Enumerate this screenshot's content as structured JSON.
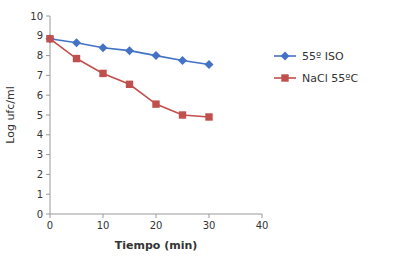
{
  "chart_data": {
    "type": "line",
    "x": [
      0,
      5,
      10,
      15,
      20,
      25,
      30
    ],
    "series": [
      {
        "name": "55º ISO",
        "color": "#4472C4",
        "marker": "diamond",
        "values": [
          8.85,
          8.65,
          8.4,
          8.25,
          8.0,
          7.75,
          7.55
        ]
      },
      {
        "name": "NaCl 55ºC",
        "color": "#C0504D",
        "marker": "square",
        "values": [
          8.85,
          7.85,
          7.1,
          6.55,
          5.55,
          5.0,
          4.9
        ]
      }
    ],
    "xlabel": "Tiempo (min)",
    "ylabel": "Log ufc/ml",
    "xlim": [
      0,
      40
    ],
    "ylim": [
      0,
      10
    ],
    "xticks": [
      0,
      10,
      20,
      30,
      40
    ],
    "yticks": [
      0,
      1,
      2,
      3,
      4,
      5,
      6,
      7,
      8,
      9,
      10
    ],
    "grid": false,
    "legend": "right"
  }
}
